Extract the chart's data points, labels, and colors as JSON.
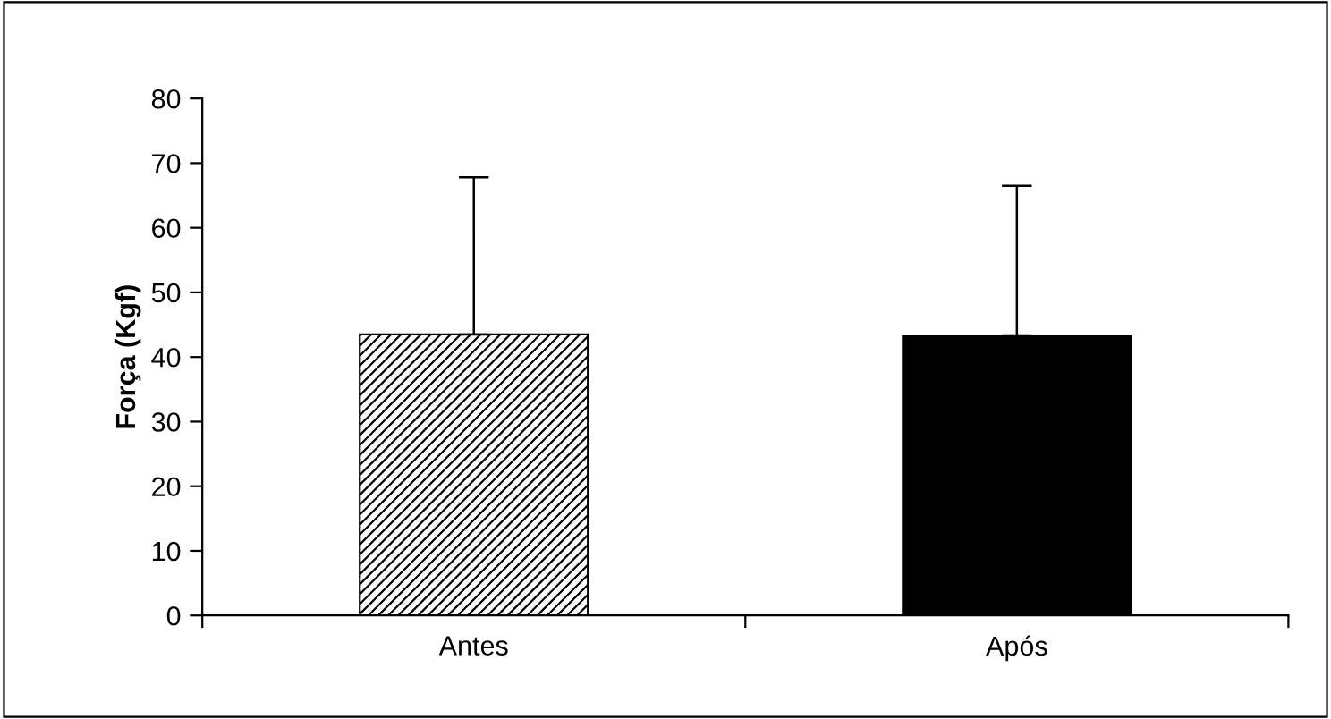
{
  "chart_data": {
    "type": "bar",
    "ylabel": "Força (Kgf)",
    "categories": [
      "Antes",
      "Após"
    ],
    "values": [
      43.5,
      43.2
    ],
    "colors": [
      "#ffffff",
      "#000000"
    ],
    "errors": [
      [
        43.5,
        67.8
      ],
      [
        43.2,
        66.5
      ]
    ],
    "ylim": [
      0,
      80
    ],
    "yticks": [
      0,
      10,
      20,
      30,
      40,
      50,
      60,
      70,
      80
    ],
    "grid": false
  }
}
